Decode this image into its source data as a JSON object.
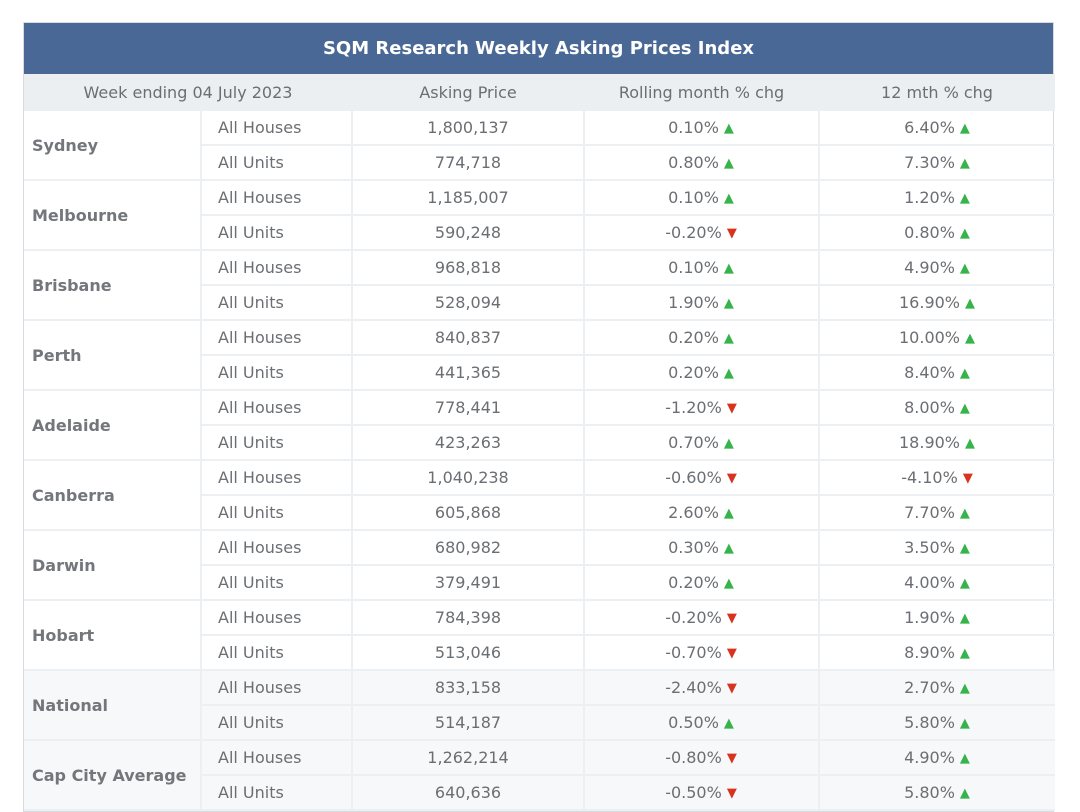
{
  "title": "SQM Research Weekly Asking Prices Index",
  "headers": {
    "week": "Week ending 04 July 2023",
    "price": "Asking Price",
    "month": "Rolling month % chg",
    "year": "12 mth % chg"
  },
  "arrow_glyphs": {
    "up": "▲",
    "down": "▼"
  },
  "colors": {
    "header_bg": "#4a6896",
    "up": "#36b34a",
    "down": "#d9321f"
  },
  "rows": [
    {
      "city": "Sydney",
      "items": [
        {
          "type": "All Houses",
          "price": "1,800,137",
          "month": "0.10%",
          "month_dir": "up",
          "year": "6.40%",
          "year_dir": "up"
        },
        {
          "type": "All Units",
          "price": "774,718",
          "month": "0.80%",
          "month_dir": "up",
          "year": "7.30%",
          "year_dir": "up"
        }
      ]
    },
    {
      "city": "Melbourne",
      "items": [
        {
          "type": "All Houses",
          "price": "1,185,007",
          "month": "0.10%",
          "month_dir": "up",
          "year": "1.20%",
          "year_dir": "up"
        },
        {
          "type": "All Units",
          "price": "590,248",
          "month": "-0.20%",
          "month_dir": "down",
          "year": "0.80%",
          "year_dir": "up"
        }
      ]
    },
    {
      "city": "Brisbane",
      "items": [
        {
          "type": "All Houses",
          "price": "968,818",
          "month": "0.10%",
          "month_dir": "up",
          "year": "4.90%",
          "year_dir": "up"
        },
        {
          "type": "All Units",
          "price": "528,094",
          "month": "1.90%",
          "month_dir": "up",
          "year": "16.90%",
          "year_dir": "up"
        }
      ]
    },
    {
      "city": "Perth",
      "items": [
        {
          "type": "All Houses",
          "price": "840,837",
          "month": "0.20%",
          "month_dir": "up",
          "year": "10.00%",
          "year_dir": "up"
        },
        {
          "type": "All Units",
          "price": "441,365",
          "month": "0.20%",
          "month_dir": "up",
          "year": "8.40%",
          "year_dir": "up"
        }
      ]
    },
    {
      "city": "Adelaide",
      "items": [
        {
          "type": "All Houses",
          "price": "778,441",
          "month": "-1.20%",
          "month_dir": "down",
          "year": "8.00%",
          "year_dir": "up"
        },
        {
          "type": "All Units",
          "price": "423,263",
          "month": "0.70%",
          "month_dir": "up",
          "year": "18.90%",
          "year_dir": "up"
        }
      ]
    },
    {
      "city": "Canberra",
      "items": [
        {
          "type": "All Houses",
          "price": "1,040,238",
          "month": "-0.60%",
          "month_dir": "down",
          "year": "-4.10%",
          "year_dir": "down"
        },
        {
          "type": "All Units",
          "price": "605,868",
          "month": "2.60%",
          "month_dir": "up",
          "year": "7.70%",
          "year_dir": "up"
        }
      ]
    },
    {
      "city": "Darwin",
      "items": [
        {
          "type": "All Houses",
          "price": "680,982",
          "month": "0.30%",
          "month_dir": "up",
          "year": "3.50%",
          "year_dir": "up"
        },
        {
          "type": "All Units",
          "price": "379,491",
          "month": "0.20%",
          "month_dir": "up",
          "year": "4.00%",
          "year_dir": "up"
        }
      ]
    },
    {
      "city": "Hobart",
      "items": [
        {
          "type": "All Houses",
          "price": "784,398",
          "month": "-0.20%",
          "month_dir": "down",
          "year": "1.90%",
          "year_dir": "up"
        },
        {
          "type": "All Units",
          "price": "513,046",
          "month": "-0.70%",
          "month_dir": "down",
          "year": "8.90%",
          "year_dir": "up"
        }
      ]
    },
    {
      "city": "National",
      "shade": true,
      "items": [
        {
          "type": "All Houses",
          "price": "833,158",
          "month": "-2.40%",
          "month_dir": "down",
          "year": "2.70%",
          "year_dir": "up"
        },
        {
          "type": "All Units",
          "price": "514,187",
          "month": "0.50%",
          "month_dir": "up",
          "year": "5.80%",
          "year_dir": "up"
        }
      ]
    },
    {
      "city": "Cap City Average",
      "shade": true,
      "items": [
        {
          "type": "All Houses",
          "price": "1,262,214",
          "month": "-0.80%",
          "month_dir": "down",
          "year": "4.90%",
          "year_dir": "up"
        },
        {
          "type": "All Units",
          "price": "640,636",
          "month": "-0.50%",
          "month_dir": "down",
          "year": "5.80%",
          "year_dir": "up"
        }
      ]
    }
  ]
}
